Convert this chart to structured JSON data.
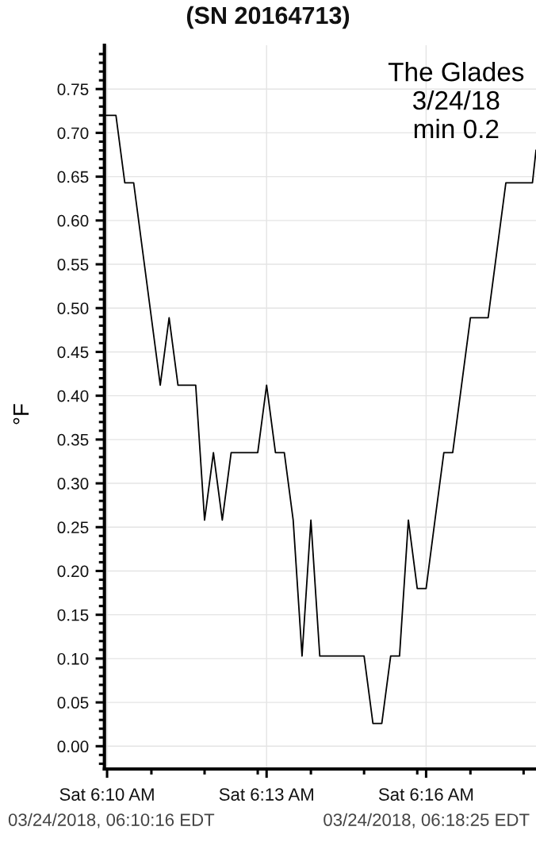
{
  "chart_data": {
    "type": "line",
    "title": "(SN 20164713)",
    "ylabel": "°F",
    "annotations": [
      "The Glades\n3/24/18\nmin 0.2",
      "03/24/2018, 06:10:16 EDT",
      "03/24/2018, 06:18:25 EDT"
    ],
    "series": [
      {
        "color": "#000000",
        "x": [
          "2018-03-24T06:09:57",
          "2018-03-24T06:10:00",
          "2018-03-24T06:10:10",
          "2018-03-24T06:10:20",
          "2018-03-24T06:10:30",
          "2018-03-24T06:10:40",
          "2018-03-24T06:10:50",
          "2018-03-24T06:11:00",
          "2018-03-24T06:11:10",
          "2018-03-24T06:11:20",
          "2018-03-24T06:11:30",
          "2018-03-24T06:11:40",
          "2018-03-24T06:11:50",
          "2018-03-24T06:12:00",
          "2018-03-24T06:12:10",
          "2018-03-24T06:12:20",
          "2018-03-24T06:12:30",
          "2018-03-24T06:12:40",
          "2018-03-24T06:12:50",
          "2018-03-24T06:13:00",
          "2018-03-24T06:13:10",
          "2018-03-24T06:13:20",
          "2018-03-24T06:13:30",
          "2018-03-24T06:13:40",
          "2018-03-24T06:13:50",
          "2018-03-24T06:14:00",
          "2018-03-24T06:14:10",
          "2018-03-24T06:14:20",
          "2018-03-24T06:14:30",
          "2018-03-24T06:14:40",
          "2018-03-24T06:14:50",
          "2018-03-24T06:15:00",
          "2018-03-24T06:15:10",
          "2018-03-24T06:15:20",
          "2018-03-24T06:15:30",
          "2018-03-24T06:15:40",
          "2018-03-24T06:15:50",
          "2018-03-24T06:16:00",
          "2018-03-24T06:16:10",
          "2018-03-24T06:16:20",
          "2018-03-24T06:16:30",
          "2018-03-24T06:16:40",
          "2018-03-24T06:16:50",
          "2018-03-24T06:17:00",
          "2018-03-24T06:17:10",
          "2018-03-24T06:17:20",
          "2018-03-24T06:17:30",
          "2018-03-24T06:17:40",
          "2018-03-24T06:17:50",
          "2018-03-24T06:18:00",
          "2018-03-24T06:18:04"
        ],
        "values": [
          0.72,
          0.72,
          0.72,
          0.643,
          0.643,
          0.566,
          0.489,
          0.412,
          0.489,
          0.412,
          0.412,
          0.412,
          0.258,
          0.335,
          0.258,
          0.335,
          0.335,
          0.335,
          0.335,
          0.412,
          0.335,
          0.335,
          0.258,
          0.103,
          0.258,
          0.103,
          0.103,
          0.103,
          0.103,
          0.103,
          0.103,
          0.026,
          0.026,
          0.103,
          0.103,
          0.258,
          0.18,
          0.18,
          0.258,
          0.335,
          0.335,
          0.412,
          0.489,
          0.489,
          0.489,
          0.566,
          0.643,
          0.643,
          0.643,
          0.643,
          0.68
        ]
      }
    ],
    "xlim": [
      "2018-03-24T06:09:57",
      "2018-03-24T06:18:04"
    ],
    "xticks": [
      {
        "value": "2018-03-24T06:10:00",
        "label": "Sat 6:10 AM"
      },
      {
        "value": "2018-03-24T06:10:50",
        "label": null
      },
      {
        "value": "2018-03-24T06:11:50",
        "label": null
      },
      {
        "value": "2018-03-24T06:12:50",
        "label": null
      },
      {
        "value": "2018-03-24T06:13:00",
        "label": "Sat 6:13 AM"
      },
      {
        "value": "2018-03-24T06:13:50",
        "label": null
      },
      {
        "value": "2018-03-24T06:14:50",
        "label": null
      },
      {
        "value": "2018-03-24T06:15:50",
        "label": null
      },
      {
        "value": "2018-03-24T06:16:00",
        "label": "Sat 6:16 AM"
      },
      {
        "value": "2018-03-24T06:16:50",
        "label": null
      },
      {
        "value": "2018-03-24T06:17:50",
        "label": null
      }
    ],
    "ylim": [
      -0.026,
      0.8
    ],
    "yticks": [
      {
        "value": -0.02,
        "label": null
      },
      {
        "value": -0.01,
        "label": null
      },
      {
        "value": 0.0,
        "label": "0.00"
      },
      {
        "value": 0.01,
        "label": null
      },
      {
        "value": 0.02,
        "label": null
      },
      {
        "value": 0.03,
        "label": null
      },
      {
        "value": 0.04,
        "label": null
      },
      {
        "value": 0.05,
        "label": "0.05"
      },
      {
        "value": 0.06,
        "label": null
      },
      {
        "value": 0.07,
        "label": null
      },
      {
        "value": 0.08,
        "label": null
      },
      {
        "value": 0.09,
        "label": null
      },
      {
        "value": 0.1,
        "label": "0.10"
      },
      {
        "value": 0.11,
        "label": null
      },
      {
        "value": 0.12,
        "label": null
      },
      {
        "value": 0.13,
        "label": null
      },
      {
        "value": 0.14,
        "label": null
      },
      {
        "value": 0.15,
        "label": "0.15"
      },
      {
        "value": 0.16,
        "label": null
      },
      {
        "value": 0.17,
        "label": null
      },
      {
        "value": 0.18,
        "label": null
      },
      {
        "value": 0.19,
        "label": null
      },
      {
        "value": 0.2,
        "label": "0.20"
      },
      {
        "value": 0.21,
        "label": null
      },
      {
        "value": 0.22,
        "label": null
      },
      {
        "value": 0.23,
        "label": null
      },
      {
        "value": 0.24,
        "label": null
      },
      {
        "value": 0.25,
        "label": "0.25"
      },
      {
        "value": 0.26,
        "label": null
      },
      {
        "value": 0.27,
        "label": null
      },
      {
        "value": 0.28,
        "label": null
      },
      {
        "value": 0.29,
        "label": null
      },
      {
        "value": 0.3,
        "label": "0.30"
      },
      {
        "value": 0.31,
        "label": null
      },
      {
        "value": 0.32,
        "label": null
      },
      {
        "value": 0.33,
        "label": null
      },
      {
        "value": 0.34,
        "label": null
      },
      {
        "value": 0.35,
        "label": "0.35"
      },
      {
        "value": 0.36,
        "label": null
      },
      {
        "value": 0.37,
        "label": null
      },
      {
        "value": 0.38,
        "label": null
      },
      {
        "value": 0.39,
        "label": null
      },
      {
        "value": 0.4,
        "label": "0.40"
      },
      {
        "value": 0.41,
        "label": null
      },
      {
        "value": 0.42,
        "label": null
      },
      {
        "value": 0.43,
        "label": null
      },
      {
        "value": 0.44,
        "label": null
      },
      {
        "value": 0.45,
        "label": "0.45"
      },
      {
        "value": 0.46,
        "label": null
      },
      {
        "value": 0.47,
        "label": null
      },
      {
        "value": 0.48,
        "label": null
      },
      {
        "value": 0.49,
        "label": null
      },
      {
        "value": 0.5,
        "label": "0.50"
      },
      {
        "value": 0.51,
        "label": null
      },
      {
        "value": 0.52,
        "label": null
      },
      {
        "value": 0.53,
        "label": null
      },
      {
        "value": 0.54,
        "label": null
      },
      {
        "value": 0.55,
        "label": "0.55"
      },
      {
        "value": 0.56,
        "label": null
      },
      {
        "value": 0.57,
        "label": null
      },
      {
        "value": 0.58,
        "label": null
      },
      {
        "value": 0.59,
        "label": null
      },
      {
        "value": 0.6,
        "label": "0.60"
      },
      {
        "value": 0.61,
        "label": null
      },
      {
        "value": 0.62,
        "label": null
      },
      {
        "value": 0.63,
        "label": null
      },
      {
        "value": 0.64,
        "label": null
      },
      {
        "value": 0.65,
        "label": "0.65"
      },
      {
        "value": 0.66,
        "label": null
      },
      {
        "value": 0.67,
        "label": null
      },
      {
        "value": 0.68,
        "label": null
      },
      {
        "value": 0.69,
        "label": null
      },
      {
        "value": 0.7,
        "label": "0.70"
      },
      {
        "value": 0.71,
        "label": null
      },
      {
        "value": 0.72,
        "label": null
      },
      {
        "value": 0.73,
        "label": null
      },
      {
        "value": 0.74,
        "label": null
      },
      {
        "value": 0.75,
        "label": "0.75"
      },
      {
        "value": 0.76,
        "label": null
      },
      {
        "value": 0.77,
        "label": null
      },
      {
        "value": 0.78,
        "label": null
      },
      {
        "value": 0.79,
        "label": null
      }
    ],
    "grid": true
  }
}
